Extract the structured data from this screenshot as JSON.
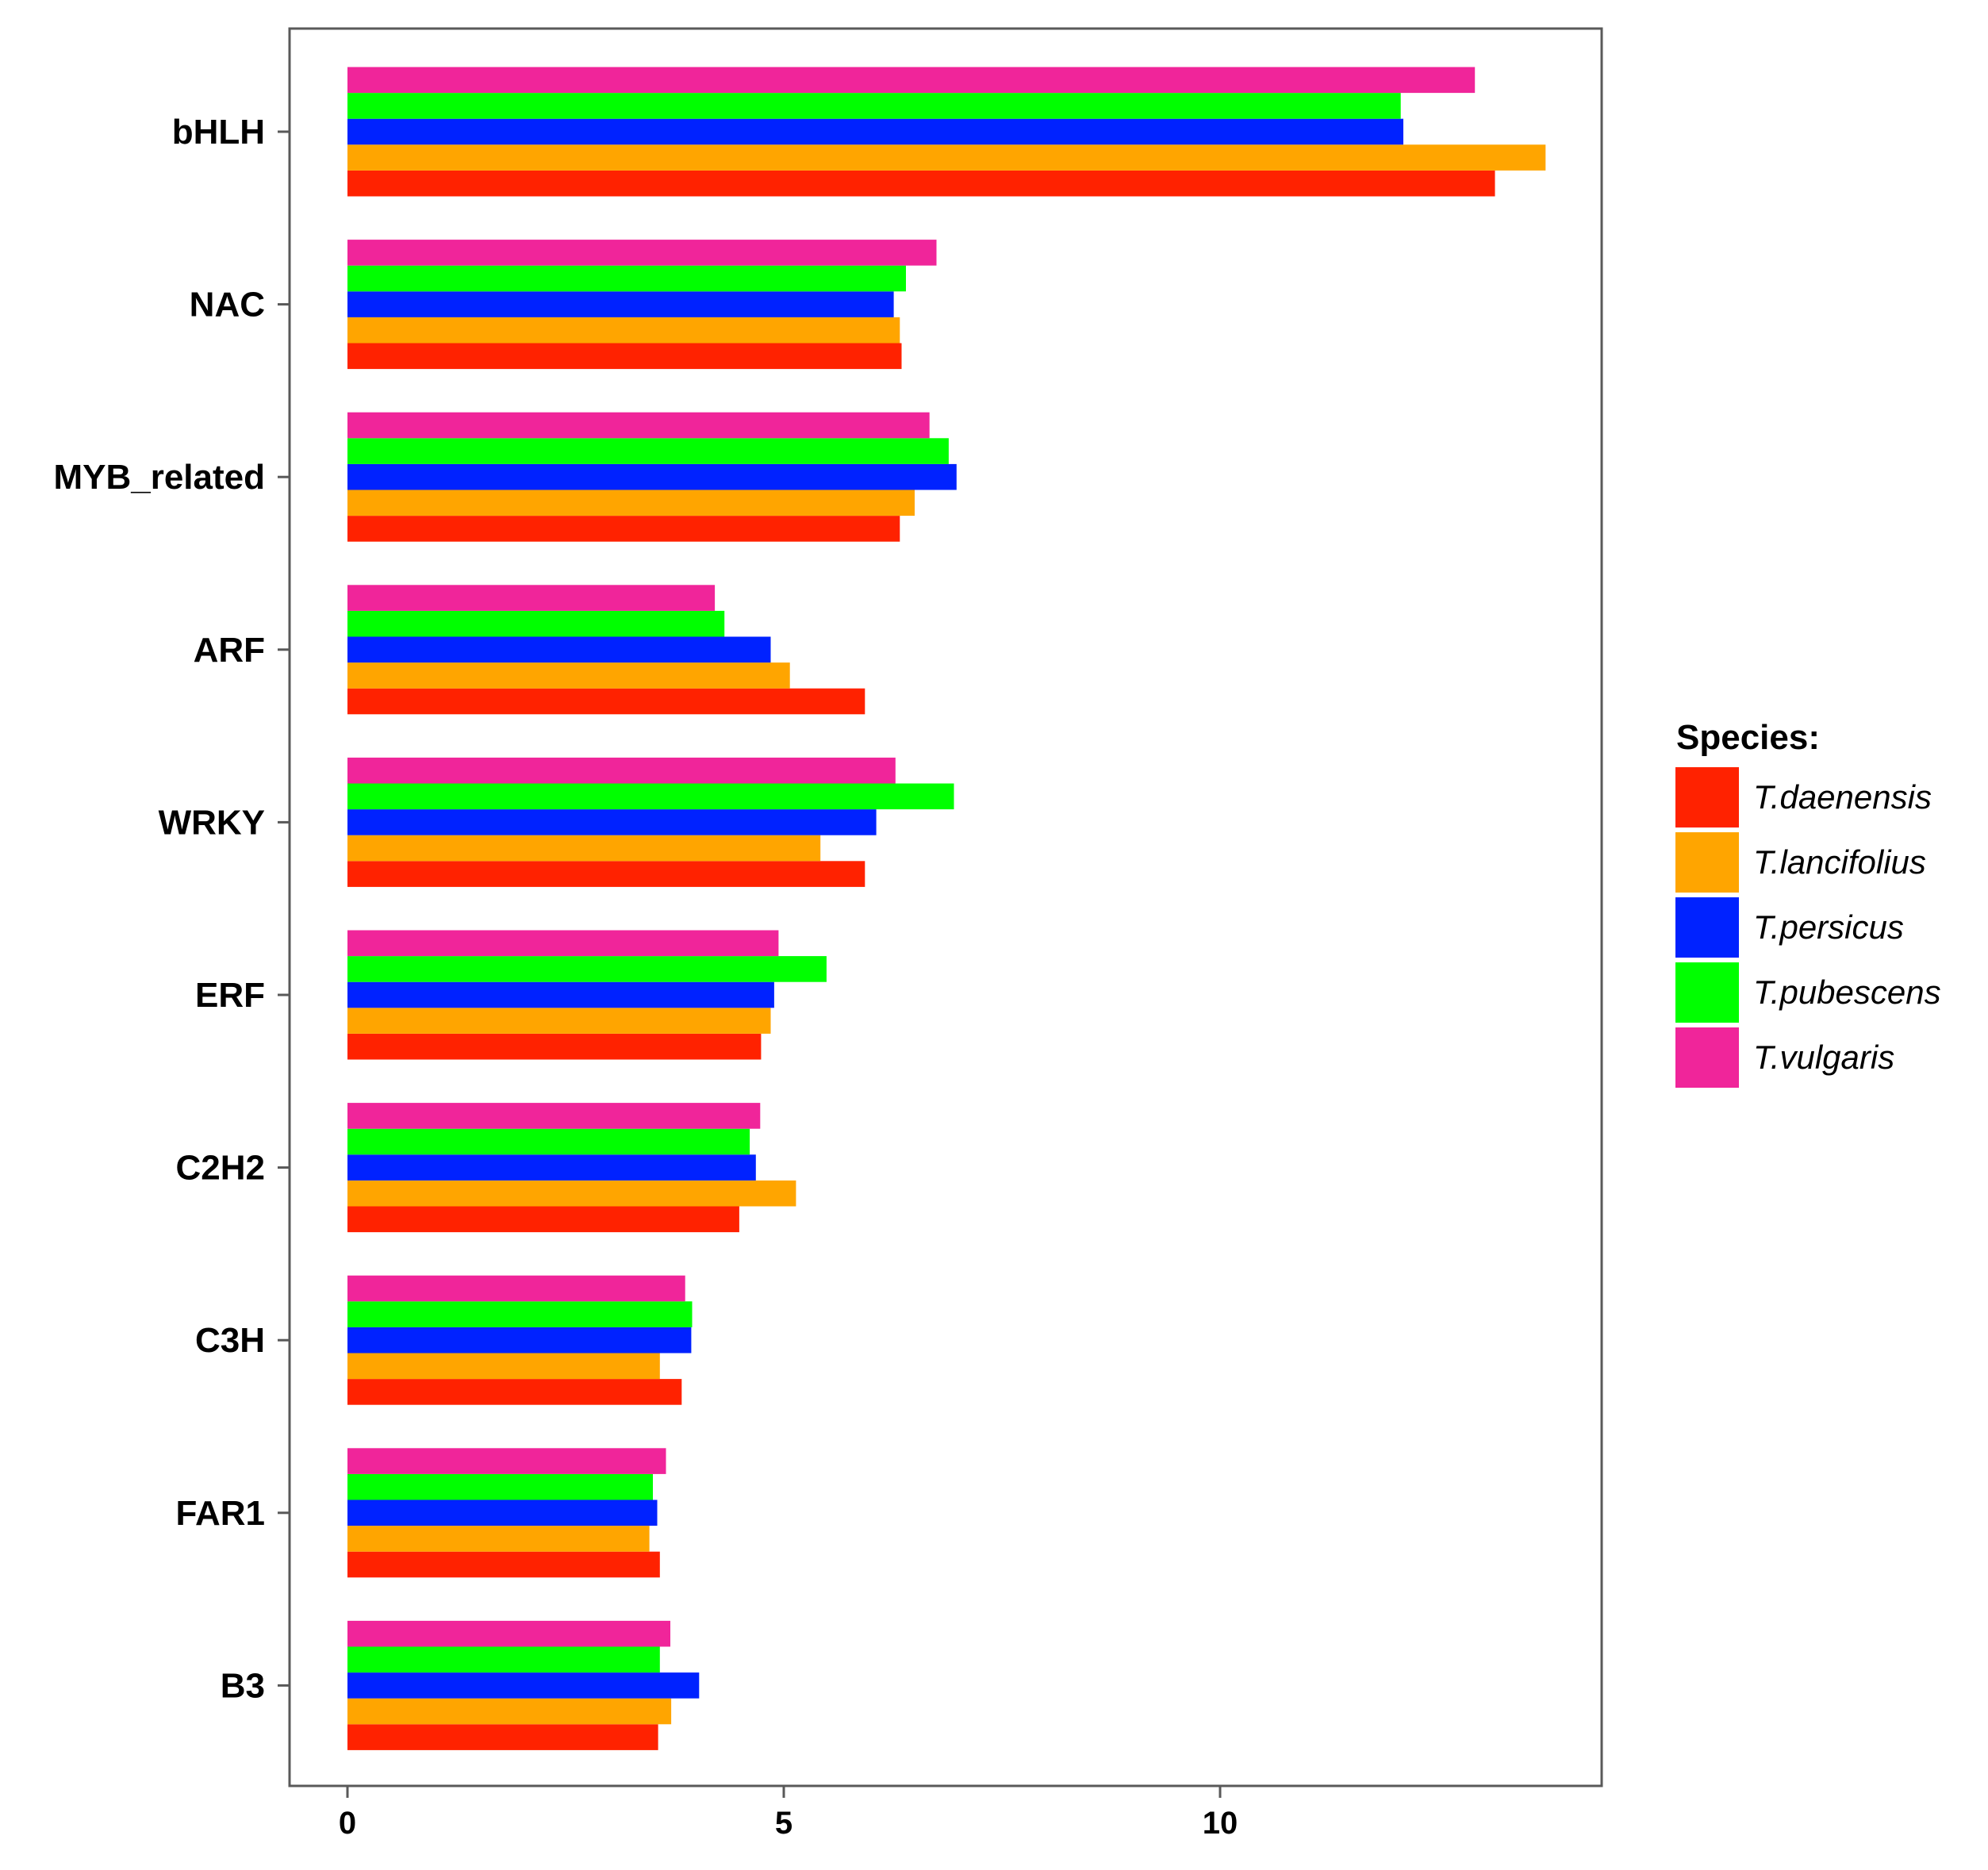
{
  "chart_data": {
    "type": "bar",
    "orientation": "horizontal",
    "title": "",
    "xlabel": "",
    "ylabel": "",
    "categories": [
      "bHLH",
      "NAC",
      "MYB_related",
      "ARF",
      "WRKY",
      "ERF",
      "C2H2",
      "C3H",
      "FAR1",
      "B3"
    ],
    "x_ticks": [
      0,
      5,
      10
    ],
    "xlim": [
      -0.65,
      14.4
    ],
    "grid": false,
    "legend": {
      "title": "Species:",
      "position": "right",
      "entries": [
        "T.daenensis",
        "T.lancifolius",
        "T.persicus",
        "T.pubescens",
        "T.vulgaris"
      ]
    },
    "series": [
      {
        "name": "T.daenensis",
        "color": "#ff2200",
        "values": [
          13.15,
          6.35,
          6.33,
          5.93,
          5.93,
          4.74,
          4.49,
          3.83,
          3.58,
          3.56
        ]
      },
      {
        "name": "T.lancifolius",
        "color": "#ffa500",
        "values": [
          13.73,
          6.33,
          6.5,
          5.07,
          5.42,
          4.85,
          5.14,
          3.58,
          3.46,
          3.71
        ]
      },
      {
        "name": "T.persicus",
        "color": "#0022ff",
        "values": [
          12.1,
          6.26,
          6.98,
          4.85,
          6.06,
          4.89,
          4.68,
          3.94,
          3.55,
          4.03
        ]
      },
      {
        "name": "T.pubescens",
        "color": "#00ff00",
        "values": [
          12.07,
          6.4,
          6.89,
          4.32,
          6.95,
          5.49,
          4.61,
          3.95,
          3.5,
          3.58
        ]
      },
      {
        "name": "T.vulgaris",
        "color": "#f0259a",
        "values": [
          12.92,
          6.75,
          6.67,
          4.21,
          6.28,
          4.94,
          4.73,
          3.87,
          3.65,
          3.7
        ]
      }
    ]
  }
}
